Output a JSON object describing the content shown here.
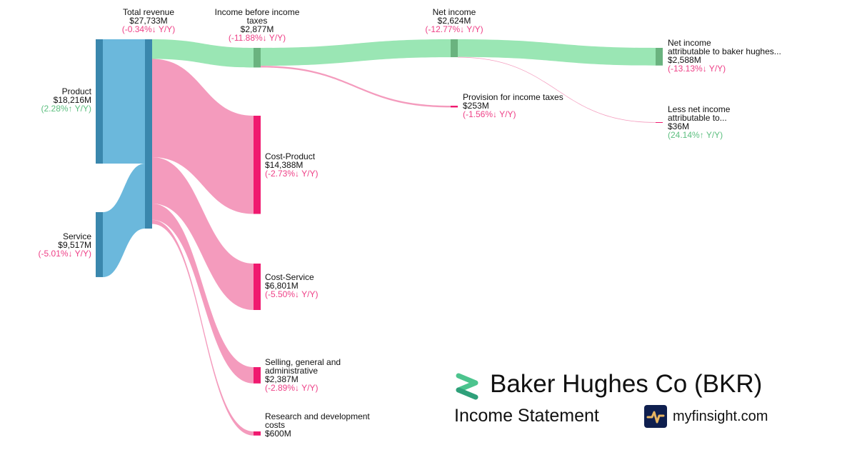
{
  "chart_data": {
    "type": "sankey",
    "unit": "M USD",
    "nodes": [
      {
        "id": "product",
        "name": "Product",
        "value_label": "$18,216M",
        "change": "(2.28%↑ Y/Y)",
        "value": 18216,
        "trend": "up"
      },
      {
        "id": "service",
        "name": "Service",
        "value_label": "$9,517M",
        "change": "(-5.01%↓ Y/Y)",
        "value": 9517,
        "trend": "down"
      },
      {
        "id": "total",
        "name": "Total revenue",
        "value_label": "$27,733M",
        "change": "(-0.34%↓ Y/Y)",
        "value": 27733,
        "trend": "down"
      },
      {
        "id": "ibt",
        "name": "Income before income taxes",
        "value_label": "$2,877M",
        "change": "(-11.88%↓ Y/Y)",
        "value": 2877,
        "trend": "down"
      },
      {
        "id": "costp",
        "name": "Cost-Product",
        "value_label": "$14,388M",
        "change": "(-2.73%↓ Y/Y)",
        "value": 14388,
        "trend": "down"
      },
      {
        "id": "costs",
        "name": "Cost-Service",
        "value_label": "$6,801M",
        "change": "(-5.50%↓ Y/Y)",
        "value": 6801,
        "trend": "down"
      },
      {
        "id": "sga",
        "name": "Selling, general and administrative",
        "value_label": "$2,387M",
        "change": "(-2.89%↓ Y/Y)",
        "value": 2387,
        "trend": "down"
      },
      {
        "id": "rd",
        "name": "Research and development costs",
        "value_label": "$600M",
        "change": "",
        "value": 600,
        "trend": ""
      },
      {
        "id": "ni",
        "name": "Net income",
        "value_label": "$2,624M",
        "change": "(-12.77%↓ Y/Y)",
        "value": 2624,
        "trend": "down"
      },
      {
        "id": "tax",
        "name": "Provision for income taxes",
        "value_label": "$253M",
        "change": "(-1.56%↓ Y/Y)",
        "value": 253,
        "trend": "down"
      },
      {
        "id": "nia",
        "name": "Net income attributable to baker hughes...",
        "value_label": "$2,588M",
        "change": "(-13.13%↓ Y/Y)",
        "value": 2588,
        "trend": "down"
      },
      {
        "id": "nci",
        "name": "Less net income attributable to...",
        "value_label": "$36M",
        "change": "(24.14%↑ Y/Y)",
        "value": 36,
        "trend": "up"
      }
    ],
    "links": [
      {
        "source": "product",
        "target": "total",
        "value": 18216
      },
      {
        "source": "service",
        "target": "total",
        "value": 9517
      },
      {
        "source": "total",
        "target": "ibt",
        "value": 2877
      },
      {
        "source": "total",
        "target": "costp",
        "value": 14388
      },
      {
        "source": "total",
        "target": "costs",
        "value": 6801
      },
      {
        "source": "total",
        "target": "sga",
        "value": 2387
      },
      {
        "source": "total",
        "target": "rd",
        "value": 600
      },
      {
        "source": "ibt",
        "target": "ni",
        "value": 2624
      },
      {
        "source": "ibt",
        "target": "tax",
        "value": 253
      },
      {
        "source": "ni",
        "target": "nia",
        "value": 2588
      },
      {
        "source": "ni",
        "target": "nci",
        "value": 36
      }
    ],
    "colors": {
      "revenue": "#3a87ad",
      "revenue_flow": "#6bb8dc",
      "profit": "#6ab37f",
      "profit_flow": "#9ae6b4",
      "expense": "#f0196f",
      "expense_flow": "#f49bbd",
      "down_text": "#ee3f86",
      "up_text": "#5cbf7f"
    }
  },
  "brand": {
    "company": "Baker Hughes Co (BKR)",
    "subtitle": "Income Statement",
    "site": "myfinsight.com"
  }
}
